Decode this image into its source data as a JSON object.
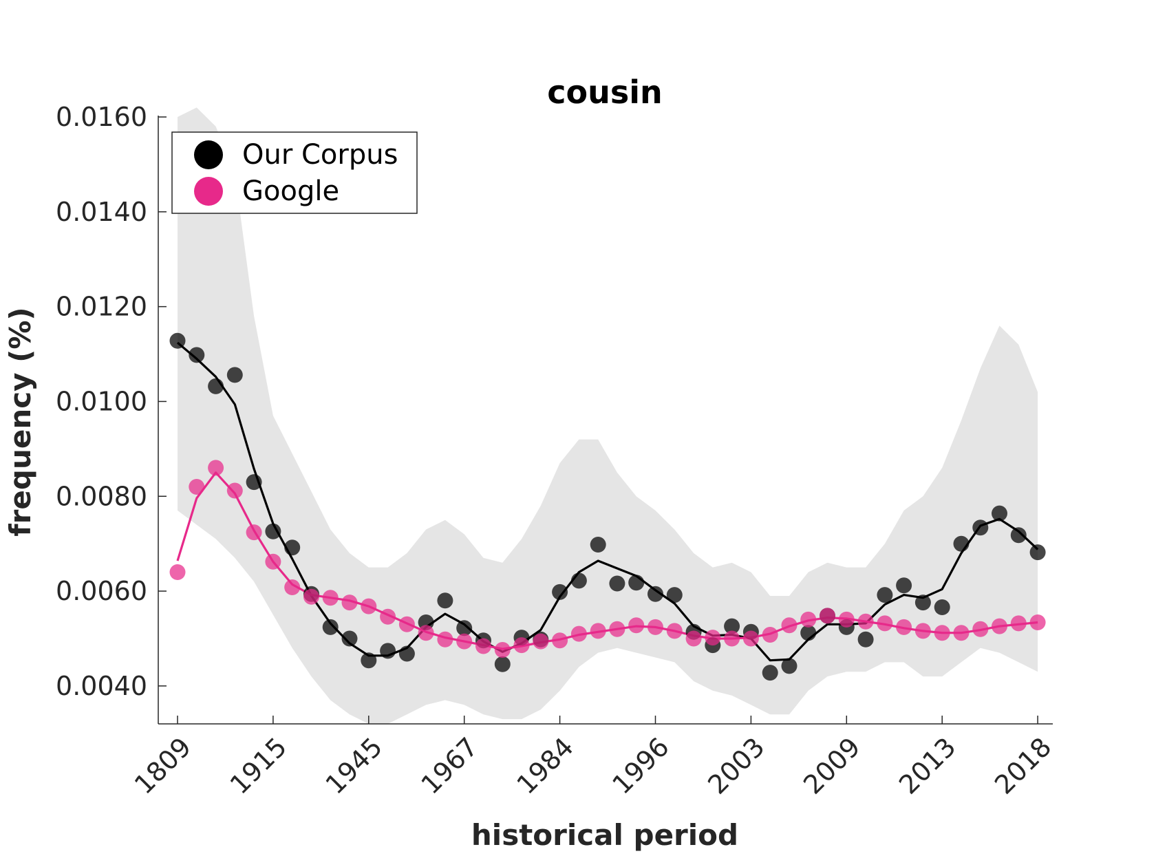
{
  "chart_data": {
    "type": "line",
    "title": "cousin",
    "xlabel": "historical period",
    "ylabel": "frequency (%)",
    "ylim": [
      0.0032,
      0.016
    ],
    "yticks": [
      "0.0040",
      "0.0060",
      "0.0080",
      "0.0100",
      "0.0120",
      "0.0140",
      "0.0160"
    ],
    "ytick_values": [
      0.004,
      0.006,
      0.008,
      0.01,
      0.012,
      0.014,
      0.016
    ],
    "xtick_labels": [
      "1809",
      "1915",
      "1945",
      "1967",
      "1984",
      "1996",
      "2003",
      "2009",
      "2013",
      "2018"
    ],
    "xtick_index": [
      0,
      5,
      10,
      15,
      20,
      25,
      30,
      35,
      40,
      45
    ],
    "grid": false,
    "legend": {
      "placement": "top-left",
      "entries": [
        {
          "label": "Our Corpus",
          "color": "#000000"
        },
        {
          "label": "Google",
          "color": "#e7298a"
        }
      ]
    },
    "n_points": 46,
    "series": [
      {
        "name": "Our Corpus",
        "color": "#000000",
        "points": [
          0.01128,
          0.01098,
          0.01032,
          0.01056,
          0.0083,
          0.00726,
          0.00692,
          0.00594,
          0.00524,
          0.005,
          0.00454,
          0.00474,
          0.00468,
          0.00534,
          0.0058,
          0.00522,
          0.00496,
          0.00446,
          0.00502,
          0.00498,
          0.00598,
          0.00622,
          0.00698,
          0.00616,
          0.00618,
          0.00594,
          0.00592,
          0.00514,
          0.00486,
          0.00526,
          0.00514,
          0.00428,
          0.00442,
          0.00512,
          0.00548,
          0.00524,
          0.00498,
          0.00592,
          0.00612,
          0.00576,
          0.00566,
          0.007,
          0.00734,
          0.00764,
          0.00718,
          0.00682
        ],
        "smooth": [
          0.01124,
          0.0109,
          0.01052,
          0.00994,
          0.00858,
          0.00742,
          0.00668,
          0.0059,
          0.00532,
          0.0049,
          0.00464,
          0.00464,
          0.0048,
          0.00524,
          0.00552,
          0.0053,
          0.00494,
          0.00472,
          0.0049,
          0.00518,
          0.00588,
          0.0064,
          0.00664,
          0.00648,
          0.00632,
          0.00602,
          0.00574,
          0.00526,
          0.00506,
          0.00508,
          0.005,
          0.00454,
          0.00456,
          0.00498,
          0.0053,
          0.0053,
          0.00532,
          0.00572,
          0.00592,
          0.00586,
          0.00604,
          0.0068,
          0.00738,
          0.00752,
          0.00726,
          0.00688
        ],
        "band_upper": [
          0.016,
          0.0162,
          0.0158,
          0.0148,
          0.0118,
          0.0097,
          0.0089,
          0.0081,
          0.0073,
          0.0068,
          0.0065,
          0.0065,
          0.0068,
          0.0073,
          0.0075,
          0.0072,
          0.0067,
          0.0066,
          0.0071,
          0.0078,
          0.0087,
          0.0092,
          0.0092,
          0.0085,
          0.008,
          0.0077,
          0.0073,
          0.0068,
          0.0065,
          0.0066,
          0.0064,
          0.0059,
          0.0059,
          0.0064,
          0.0066,
          0.0065,
          0.0065,
          0.007,
          0.0077,
          0.008,
          0.0086,
          0.0096,
          0.0107,
          0.0116,
          0.0112,
          0.0102
        ],
        "band_lower": [
          0.0077,
          0.0074,
          0.0071,
          0.0067,
          0.0062,
          0.0055,
          0.0048,
          0.0042,
          0.0037,
          0.0034,
          0.0032,
          0.0032,
          0.0034,
          0.0036,
          0.0037,
          0.0036,
          0.0034,
          0.0033,
          0.0033,
          0.0035,
          0.0039,
          0.0044,
          0.0047,
          0.0048,
          0.0047,
          0.0046,
          0.0045,
          0.0041,
          0.0039,
          0.0038,
          0.0036,
          0.0034,
          0.0034,
          0.0039,
          0.0042,
          0.0043,
          0.0043,
          0.0045,
          0.0045,
          0.0042,
          0.0042,
          0.0045,
          0.0048,
          0.0047,
          0.0045,
          0.0043
        ]
      },
      {
        "name": "Google",
        "color": "#e7298a",
        "points": [
          0.0064,
          0.0082,
          0.0086,
          0.00812,
          0.00724,
          0.00662,
          0.00608,
          0.00588,
          0.00586,
          0.00576,
          0.00568,
          0.00546,
          0.0053,
          0.00512,
          0.00498,
          0.00494,
          0.00484,
          0.00476,
          0.00486,
          0.00494,
          0.00496,
          0.0051,
          0.00516,
          0.0052,
          0.00528,
          0.00524,
          0.00516,
          0.005,
          0.00502,
          0.005,
          0.005,
          0.00508,
          0.00528,
          0.0054,
          0.00548,
          0.0054,
          0.00536,
          0.00532,
          0.00524,
          0.00516,
          0.00512,
          0.00512,
          0.0052,
          0.00526,
          0.00532,
          0.00534
        ],
        "smooth": [
          0.00664,
          0.00796,
          0.0085,
          0.00806,
          0.00728,
          0.00662,
          0.00614,
          0.00592,
          0.00586,
          0.0058,
          0.00568,
          0.0055,
          0.00532,
          0.00514,
          0.00502,
          0.00494,
          0.00486,
          0.00478,
          0.00484,
          0.00492,
          0.00498,
          0.00508,
          0.00514,
          0.0052,
          0.00526,
          0.00524,
          0.00516,
          0.00506,
          0.005,
          0.005,
          0.00502,
          0.0051,
          0.00526,
          0.00538,
          0.00544,
          0.00542,
          0.00536,
          0.0053,
          0.00522,
          0.00516,
          0.00512,
          0.00512,
          0.00518,
          0.00526,
          0.0053,
          0.00534
        ]
      }
    ]
  }
}
